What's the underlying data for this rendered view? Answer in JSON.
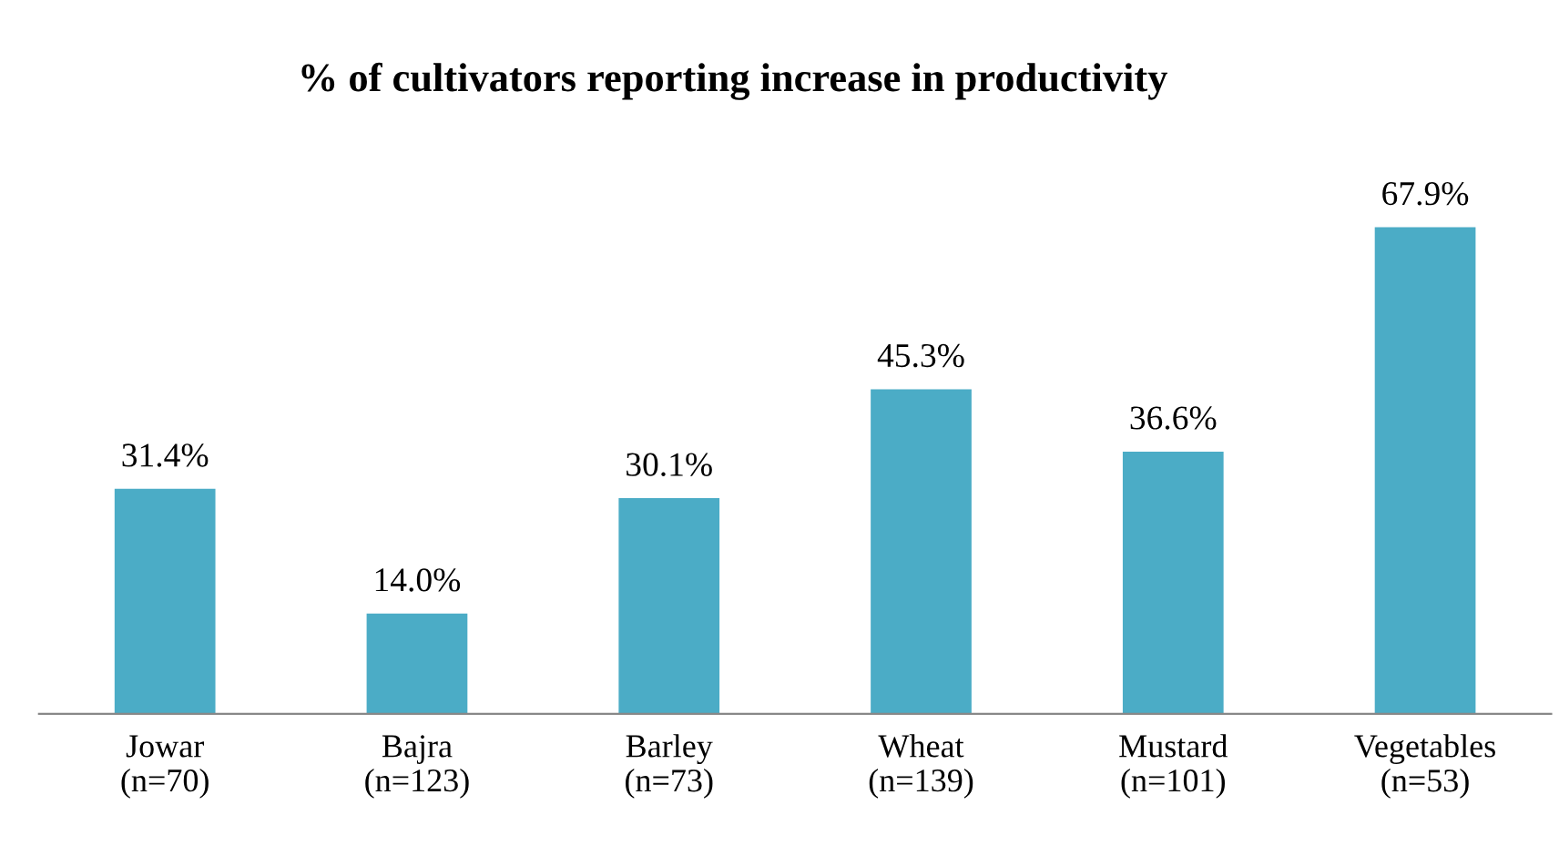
{
  "chart_data": {
    "type": "bar",
    "title": "% of cultivators reporting increase in productivity",
    "categories": [
      "Jowar\n(n=70)",
      "Bajra\n(n=123)",
      "Barley\n(n=73)",
      "Wheat\n(n=139)",
      "Mustard\n(n=101)",
      "Vegetables\n(n=53)"
    ],
    "values": [
      31.4,
      14.0,
      30.1,
      45.3,
      36.6,
      67.9
    ],
    "value_labels": [
      "31.4%",
      "14.0%",
      "30.1%",
      "45.3%",
      "36.6%",
      "67.9%"
    ],
    "color": "#4bacc6",
    "grid": false,
    "legend": false
  }
}
